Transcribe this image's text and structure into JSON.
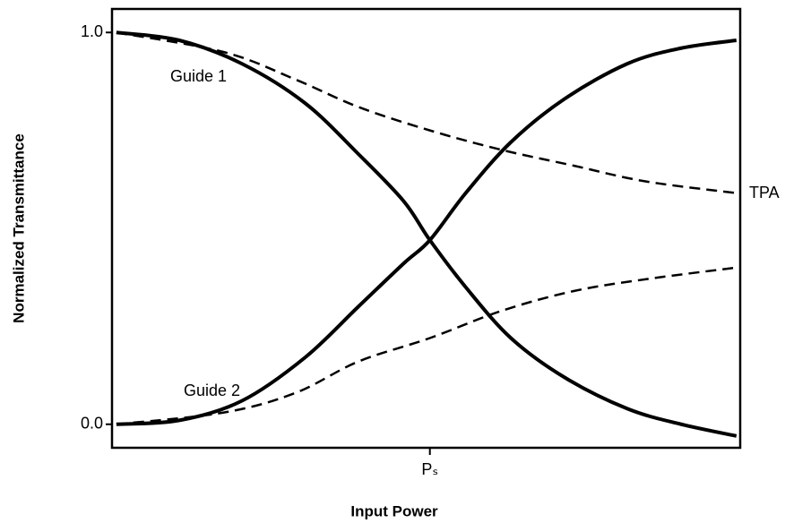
{
  "chart_data": {
    "type": "line",
    "x_label": "Input Power",
    "y_label": "Normalized Transmittance",
    "xlim": [
      0,
      10
    ],
    "ylim": [
      -0.06,
      1.06
    ],
    "xticks": [
      {
        "value": 5.06,
        "label": "Pₛ"
      }
    ],
    "yticks": [
      {
        "value": 0,
        "label": "0.0"
      },
      {
        "value": 1,
        "label": "1.0"
      }
    ],
    "annotations": [
      "Guide 1",
      "Guide 2",
      "TPA"
    ],
    "series": [
      {
        "color": "#000000",
        "style": "solid",
        "x": [
          0.07,
          1.07,
          2.07,
          3.07,
          3.92,
          4.64,
          5.06,
          5.63,
          6.35,
          7.2,
          8.2,
          9.06,
          9.94
        ],
        "values": [
          1.0,
          0.98,
          0.92,
          0.82,
          0.69,
          0.57,
          0.47,
          0.35,
          0.22,
          0.12,
          0.04,
          0.0,
          -0.03
        ]
      },
      {
        "color": "#000000",
        "style": "solid",
        "x": [
          0.07,
          1.07,
          2.07,
          3.07,
          3.92,
          4.64,
          5.06,
          5.63,
          6.35,
          7.2,
          8.2,
          9.06,
          9.94
        ],
        "values": [
          0.0,
          0.01,
          0.06,
          0.17,
          0.3,
          0.41,
          0.47,
          0.59,
          0.72,
          0.83,
          0.92,
          0.96,
          0.98
        ]
      },
      {
        "color": "#000000",
        "style": "dashed",
        "x": [
          0.07,
          1.78,
          2.92,
          3.92,
          5.06,
          6.21,
          7.35,
          8.49,
          9.94
        ],
        "values": [
          1.0,
          0.95,
          0.88,
          0.81,
          0.75,
          0.7,
          0.66,
          0.62,
          0.59
        ]
      },
      {
        "color": "#000000",
        "style": "dashed",
        "x": [
          0.07,
          1.78,
          2.92,
          3.92,
          5.06,
          6.21,
          7.35,
          8.49,
          9.94
        ],
        "values": [
          0.0,
          0.03,
          0.08,
          0.16,
          0.22,
          0.29,
          0.34,
          0.37,
          0.4
        ]
      }
    ]
  }
}
